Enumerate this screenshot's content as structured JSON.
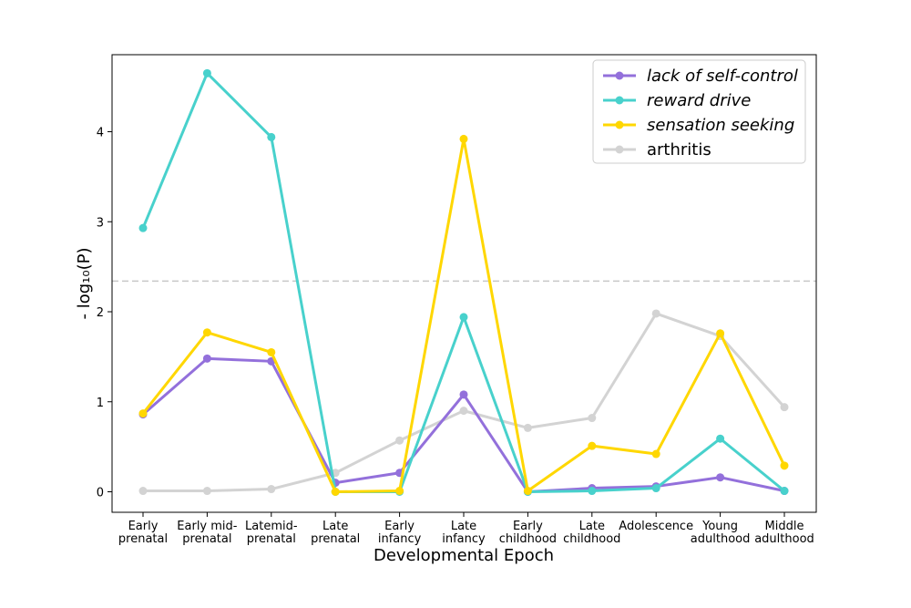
{
  "chart_data": {
    "type": "line",
    "title": "",
    "xlabel": "Developmental Epoch",
    "ylabel": "- log₁₀(P)",
    "ylim": [
      -0.22,
      4.85
    ],
    "yticks": [
      0,
      1,
      2,
      3,
      4
    ],
    "threshold": 2.34,
    "categories": [
      [
        "Early",
        "prenatal"
      ],
      [
        "Early mid-",
        "prenatal"
      ],
      [
        "Latemid-",
        "prenatal"
      ],
      [
        "Late",
        "prenatal"
      ],
      [
        "Early",
        "infancy"
      ],
      [
        "Late",
        "infancy"
      ],
      [
        "Early",
        "childhood"
      ],
      [
        "Late",
        "childhood"
      ],
      [
        "Adolescence"
      ],
      [
        "Young",
        "adulthood"
      ],
      [
        "Middle",
        "adulthood"
      ]
    ],
    "series": [
      {
        "name": "lack of self-control",
        "color": "#9370DB",
        "italic": true,
        "values": [
          0.86,
          1.48,
          1.45,
          0.1,
          0.21,
          1.08,
          0.0,
          0.04,
          0.06,
          0.16,
          0.01
        ]
      },
      {
        "name": "reward drive",
        "color": "#48D1CC",
        "italic": true,
        "values": [
          2.93,
          4.65,
          3.94,
          0.0,
          0.0,
          1.94,
          0.0,
          0.01,
          0.04,
          0.59,
          0.01
        ]
      },
      {
        "name": "sensation seeking",
        "color": "#FFD700",
        "italic": true,
        "values": [
          0.87,
          1.77,
          1.55,
          0.0,
          0.01,
          3.92,
          0.01,
          0.51,
          0.42,
          1.76,
          0.29
        ]
      },
      {
        "name": "arthritis",
        "color": "#D3D3D3",
        "italic": false,
        "values": [
          0.01,
          0.01,
          0.03,
          0.21,
          0.57,
          0.9,
          0.71,
          0.82,
          1.98,
          1.73,
          0.94
        ]
      }
    ],
    "legend_position": "top-right",
    "draw_order": [
      "arthritis",
      "lack of self-control",
      "reward drive",
      "sensation seeking"
    ]
  }
}
